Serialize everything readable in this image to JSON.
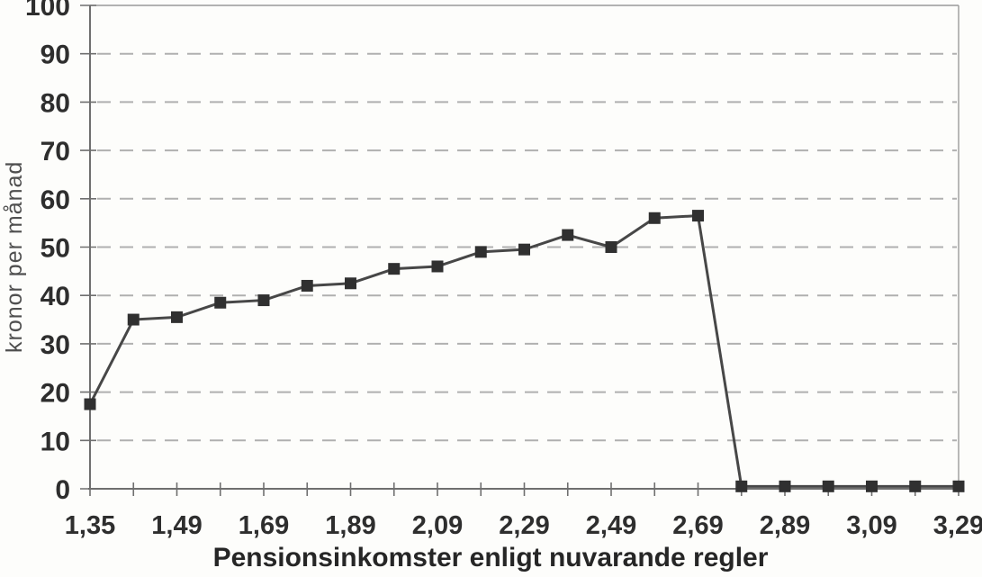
{
  "figure": {
    "background": "#fdfdfb"
  },
  "chart_data": {
    "type": "line",
    "title": "",
    "xlabel": "Pensionsinkomster enligt nuvarande regler",
    "ylabel": "kronor per månad",
    "ylim": [
      0,
      100
    ],
    "y_ticks": [
      0,
      10,
      20,
      30,
      40,
      50,
      60,
      70,
      80,
      90,
      100
    ],
    "x_tick_labels": [
      "1,35",
      "1,49",
      "1,69",
      "1,89",
      "2,09",
      "2,29",
      "2,49",
      "2,69",
      "2,89",
      "3,09",
      "3,29"
    ],
    "points_per_label_interval": 2,
    "series": [
      {
        "name": "kronor per månad",
        "values": [
          17.5,
          35,
          35.5,
          38.5,
          39,
          42,
          42.5,
          45.5,
          46,
          49,
          49.5,
          52.5,
          50,
          56,
          56.5,
          0.5,
          0.5,
          0.5,
          0.5,
          0.5,
          0.5
        ]
      }
    ],
    "marker": "filled-square",
    "marker_size": 13,
    "grid": "horizontal-dashed",
    "legend_position": "none",
    "colors": {
      "line": "#474747",
      "marker": "#303030",
      "grid": "#b0b0b0",
      "axis": "#6f6f6f",
      "border": "#9a9a9a",
      "text": "#2e2e2e"
    }
  }
}
